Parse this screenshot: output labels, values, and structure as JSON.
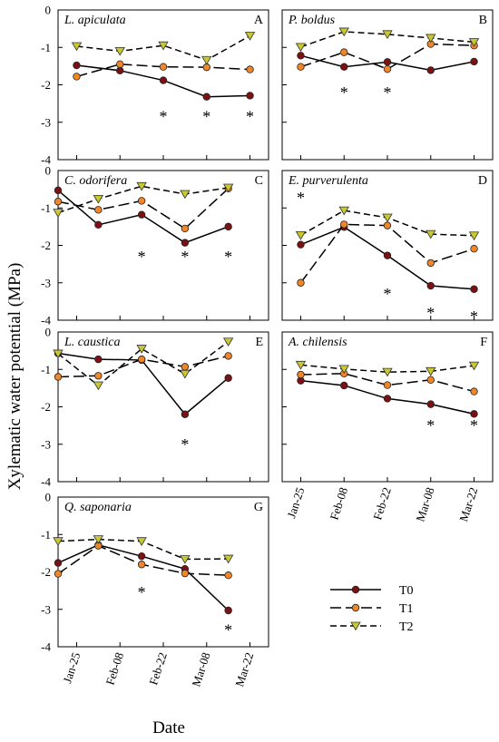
{
  "figure": {
    "ylabel": "Xylematic water potential (MPa)",
    "xlabel": "Date"
  },
  "legend": [
    {
      "name": "T0",
      "line": "solid",
      "marker": "circle",
      "fill": "#7b1113"
    },
    {
      "name": "T1",
      "line": "longdash",
      "marker": "circle",
      "fill": "#f0862a"
    },
    {
      "name": "T2",
      "line": "dash",
      "marker": "triangle",
      "fill": "#c8c832"
    }
  ],
  "chart_data": [
    {
      "panel": "A",
      "title": "L. apiculata",
      "type": "line",
      "x": [
        "Jan-25",
        "Feb-08",
        "Feb-22",
        "Mar-08",
        "Mar-22"
      ],
      "xlim": [
        "Jan-19",
        "Mar-28"
      ],
      "ylim": [
        -4,
        0
      ],
      "yticks": [
        0,
        -1,
        -2,
        -3,
        -4
      ],
      "series": [
        {
          "name": "T0",
          "points": [
            [
              "Jan-25",
              -1.48
            ],
            [
              "Feb-08",
              -1.62
            ],
            [
              "Feb-22",
              -1.88
            ],
            [
              "Mar-08",
              -2.32
            ],
            [
              "Mar-22",
              -2.29
            ]
          ]
        },
        {
          "name": "T1",
          "points": [
            [
              "Jan-25",
              -1.78
            ],
            [
              "Feb-08",
              -1.45
            ],
            [
              "Feb-22",
              -1.52
            ],
            [
              "Mar-08",
              -1.53
            ],
            [
              "Mar-22",
              -1.59
            ]
          ]
        },
        {
          "name": "T2",
          "points": [
            [
              "Jan-25",
              -0.97
            ],
            [
              "Feb-08",
              -1.1
            ],
            [
              "Feb-22",
              -0.95
            ],
            [
              "Mar-08",
              -1.34
            ],
            [
              "Mar-22",
              -0.69
            ]
          ]
        }
      ],
      "asterisks": [
        "Feb-22",
        "Mar-08",
        "Mar-22"
      ]
    },
    {
      "panel": "B",
      "title": "P. boldus",
      "type": "line",
      "x": [
        "Jan-25",
        "Feb-08",
        "Feb-22",
        "Mar-08",
        "Mar-22"
      ],
      "xlim": [
        "Jan-19",
        "Mar-28"
      ],
      "ylim": [
        -4,
        0
      ],
      "series": [
        {
          "name": "T0",
          "points": [
            [
              "Jan-25",
              -1.22
            ],
            [
              "Feb-08",
              -1.52
            ],
            [
              "Feb-22",
              -1.39
            ],
            [
              "Mar-08",
              -1.61
            ],
            [
              "Mar-22",
              -1.38
            ]
          ]
        },
        {
          "name": "T1",
          "points": [
            [
              "Jan-25",
              -1.52
            ],
            [
              "Feb-08",
              -1.13
            ],
            [
              "Feb-22",
              -1.58
            ],
            [
              "Mar-08",
              -0.91
            ],
            [
              "Mar-22",
              -0.95
            ]
          ]
        },
        {
          "name": "T2",
          "points": [
            [
              "Jan-25",
              -0.99
            ],
            [
              "Feb-08",
              -0.58
            ],
            [
              "Feb-22",
              -0.65
            ],
            [
              "Mar-08",
              -0.75
            ],
            [
              "Mar-22",
              -0.86
            ]
          ]
        }
      ],
      "asterisks": [
        "Feb-08",
        "Feb-22"
      ]
    },
    {
      "panel": "C",
      "title": "C. odorifera",
      "type": "line",
      "x": [
        "Jan-25",
        "Feb-08",
        "Feb-22",
        "Mar-08",
        "Mar-22"
      ],
      "xlim": [
        "Jan-19",
        "Mar-28"
      ],
      "ylim": [
        -4,
        0
      ],
      "yticks": [
        0,
        -1,
        -2,
        -3,
        -4
      ],
      "series": [
        {
          "name": "T0",
          "points": [
            [
              "Jan-19",
              -0.53
            ],
            [
              "Feb-01",
              -1.45
            ],
            [
              "Feb-15",
              -1.18
            ],
            [
              "Mar-01",
              -1.93
            ],
            [
              "Mar-15",
              -1.5
            ]
          ]
        },
        {
          "name": "T1",
          "points": [
            [
              "Jan-19",
              -0.83
            ],
            [
              "Feb-01",
              -1.05
            ],
            [
              "Feb-15",
              -0.81
            ],
            [
              "Mar-01",
              -1.55
            ],
            [
              "Mar-15",
              -0.48
            ]
          ]
        },
        {
          "name": "T2",
          "points": [
            [
              "Jan-19",
              -1.13
            ],
            [
              "Feb-01",
              -0.76
            ],
            [
              "Feb-15",
              -0.42
            ],
            [
              "Mar-01",
              -0.63
            ],
            [
              "Mar-15",
              -0.46
            ]
          ]
        }
      ],
      "asterisks": [
        "Feb-15",
        "Mar-01",
        "Mar-15"
      ]
    },
    {
      "panel": "D",
      "title": "E. purverulenta",
      "type": "line",
      "x": [
        "Jan-25",
        "Feb-08",
        "Feb-22",
        "Mar-08",
        "Mar-22"
      ],
      "xlim": [
        "Jan-19",
        "Mar-28"
      ],
      "ylim": [
        -4,
        0
      ],
      "series": [
        {
          "name": "T0",
          "points": [
            [
              "Jan-25",
              -1.98
            ],
            [
              "Feb-08",
              -1.51
            ],
            [
              "Feb-22",
              -2.27
            ],
            [
              "Mar-08",
              -3.08
            ],
            [
              "Mar-22",
              -3.17
            ]
          ]
        },
        {
          "name": "T1",
          "points": [
            [
              "Jan-25",
              -3.0
            ],
            [
              "Feb-08",
              -1.44
            ],
            [
              "Feb-22",
              -1.47
            ],
            [
              "Mar-08",
              -2.47
            ],
            [
              "Mar-22",
              -2.09
            ]
          ]
        },
        {
          "name": "T2",
          "points": [
            [
              "Jan-25",
              -1.73
            ],
            [
              "Feb-08",
              -1.07
            ],
            [
              "Feb-22",
              -1.26
            ],
            [
              "Mar-08",
              -1.7
            ],
            [
              "Mar-22",
              -1.74
            ]
          ]
        }
      ],
      "asterisks": [
        "Jan-25",
        "Feb-22",
        "Mar-08",
        "Mar-22"
      ]
    },
    {
      "panel": "E",
      "title": "L. caustica",
      "type": "line",
      "x": [
        "Jan-25",
        "Feb-08",
        "Feb-22",
        "Mar-08",
        "Mar-22"
      ],
      "xlim": [
        "Jan-19",
        "Mar-28"
      ],
      "ylim": [
        -4,
        0
      ],
      "yticks": [
        0,
        -1,
        -2,
        -3,
        -4
      ],
      "series": [
        {
          "name": "T0",
          "points": [
            [
              "Jan-19",
              -0.57
            ],
            [
              "Feb-01",
              -0.73
            ],
            [
              "Feb-15",
              -0.75
            ],
            [
              "Mar-01",
              -2.2
            ],
            [
              "Mar-15",
              -1.23
            ]
          ]
        },
        {
          "name": "T1",
          "points": [
            [
              "Jan-19",
              -1.2
            ],
            [
              "Feb-01",
              -1.17
            ],
            [
              "Feb-15",
              -0.73
            ],
            [
              "Mar-01",
              -0.93
            ],
            [
              "Mar-15",
              -0.64
            ]
          ]
        },
        {
          "name": "T2",
          "points": [
            [
              "Jan-19",
              -0.58
            ],
            [
              "Feb-01",
              -1.43
            ],
            [
              "Feb-15",
              -0.45
            ],
            [
              "Mar-01",
              -1.12
            ],
            [
              "Mar-15",
              -0.26
            ]
          ]
        }
      ],
      "asterisks": [
        "Mar-01"
      ]
    },
    {
      "panel": "F",
      "title": "A. chilensis",
      "type": "line",
      "x": [
        "Jan-25",
        "Feb-08",
        "Feb-22",
        "Mar-08",
        "Mar-22"
      ],
      "xlim": [
        "Jan-19",
        "Mar-28"
      ],
      "ylim": [
        -4,
        0
      ],
      "series": [
        {
          "name": "T0",
          "points": [
            [
              "Jan-25",
              -1.3
            ],
            [
              "Feb-08",
              -1.43
            ],
            [
              "Feb-22",
              -1.78
            ],
            [
              "Mar-08",
              -1.93
            ],
            [
              "Mar-22",
              -2.19
            ]
          ]
        },
        {
          "name": "T1",
          "points": [
            [
              "Jan-25",
              -1.14
            ],
            [
              "Feb-08",
              -1.11
            ],
            [
              "Feb-22",
              -1.42
            ],
            [
              "Mar-08",
              -1.28
            ],
            [
              "Mar-22",
              -1.59
            ]
          ]
        },
        {
          "name": "T2",
          "points": [
            [
              "Jan-25",
              -0.88
            ],
            [
              "Feb-08",
              -0.99
            ],
            [
              "Feb-22",
              -1.07
            ],
            [
              "Mar-08",
              -1.05
            ],
            [
              "Mar-22",
              -0.9
            ]
          ]
        }
      ],
      "asterisks": [
        "Mar-08",
        "Mar-22"
      ]
    },
    {
      "panel": "G",
      "title": "Q. saponaria",
      "type": "line",
      "x": [
        "Jan-25",
        "Feb-08",
        "Feb-22",
        "Mar-08",
        "Mar-22"
      ],
      "xlim": [
        "Jan-19",
        "Mar-28"
      ],
      "ylim": [
        -4,
        0
      ],
      "yticks": [
        0,
        -1,
        -2,
        -3,
        -4
      ],
      "series": [
        {
          "name": "T0",
          "points": [
            [
              "Jan-19",
              -1.76
            ],
            [
              "Feb-01",
              -1.28
            ],
            [
              "Feb-15",
              -1.58
            ],
            [
              "Mar-01",
              -1.92
            ],
            [
              "Mar-15",
              -3.03
            ]
          ]
        },
        {
          "name": "T1",
          "points": [
            [
              "Jan-19",
              -2.05
            ],
            [
              "Feb-01",
              -1.3
            ],
            [
              "Feb-15",
              -1.8
            ],
            [
              "Mar-01",
              -2.04
            ],
            [
              "Mar-15",
              -2.09
            ]
          ]
        },
        {
          "name": "T2",
          "points": [
            [
              "Jan-19",
              -1.18
            ],
            [
              "Feb-01",
              -1.13
            ],
            [
              "Feb-15",
              -1.18
            ],
            [
              "Mar-01",
              -1.66
            ],
            [
              "Mar-15",
              -1.65
            ]
          ]
        }
      ],
      "asterisks": [
        "Feb-15",
        "Mar-15"
      ]
    }
  ]
}
